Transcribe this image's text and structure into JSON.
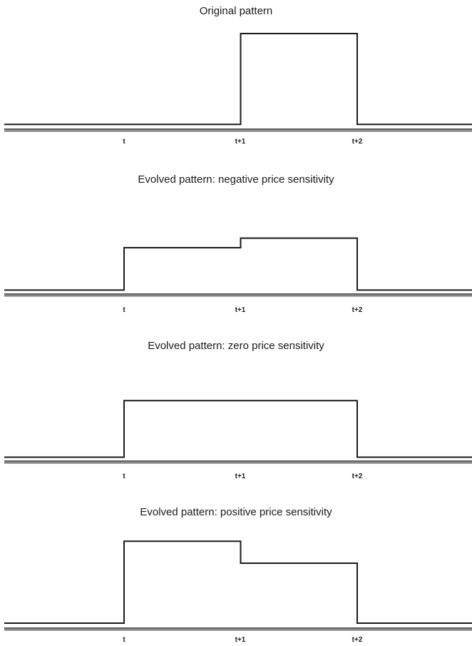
{
  "chart_data": [
    {
      "type": "line",
      "title": "Original pattern",
      "x_ticks": [
        "t",
        "t+1",
        "t+2"
      ],
      "xlim": [
        -1,
        3
      ],
      "ylim": [
        0,
        1
      ],
      "segments": [
        {
          "from": -1,
          "to": 1,
          "y": 0.05
        },
        {
          "from": 1,
          "to": 2,
          "y": 1.0
        },
        {
          "from": 2,
          "to": 3,
          "y": 0.05
        }
      ]
    },
    {
      "type": "line",
      "title": "Evolved pattern: negative price sensitivity",
      "x_ticks": [
        "t",
        "t+1",
        "t+2"
      ],
      "xlim": [
        -1,
        3
      ],
      "ylim": [
        0,
        1
      ],
      "segments": [
        {
          "from": -1,
          "to": 0,
          "y": 0.05
        },
        {
          "from": 0,
          "to": 1,
          "y": 0.58
        },
        {
          "from": 1,
          "to": 2,
          "y": 0.7
        },
        {
          "from": 2,
          "to": 3,
          "y": 0.05
        }
      ]
    },
    {
      "type": "line",
      "title": "Evolved pattern: zero price sensitivity",
      "x_ticks": [
        "t",
        "t+1",
        "t+2"
      ],
      "xlim": [
        -1,
        3
      ],
      "ylim": [
        0,
        1
      ],
      "segments": [
        {
          "from": -1,
          "to": 0,
          "y": 0.05
        },
        {
          "from": 0,
          "to": 2,
          "y": 0.77
        },
        {
          "from": 2,
          "to": 3,
          "y": 0.05
        }
      ]
    },
    {
      "type": "line",
      "title": "Evolved pattern: positive price sensitivity",
      "x_ticks": [
        "t",
        "t+1",
        "t+2"
      ],
      "xlim": [
        -1,
        3
      ],
      "ylim": [
        0,
        1
      ],
      "segments": [
        {
          "from": -1,
          "to": 0,
          "y": 0.05
        },
        {
          "from": 0,
          "to": 1,
          "y": 0.87
        },
        {
          "from": 1,
          "to": 2,
          "y": 0.65
        },
        {
          "from": 2,
          "to": 3,
          "y": 0.05
        }
      ]
    }
  ]
}
